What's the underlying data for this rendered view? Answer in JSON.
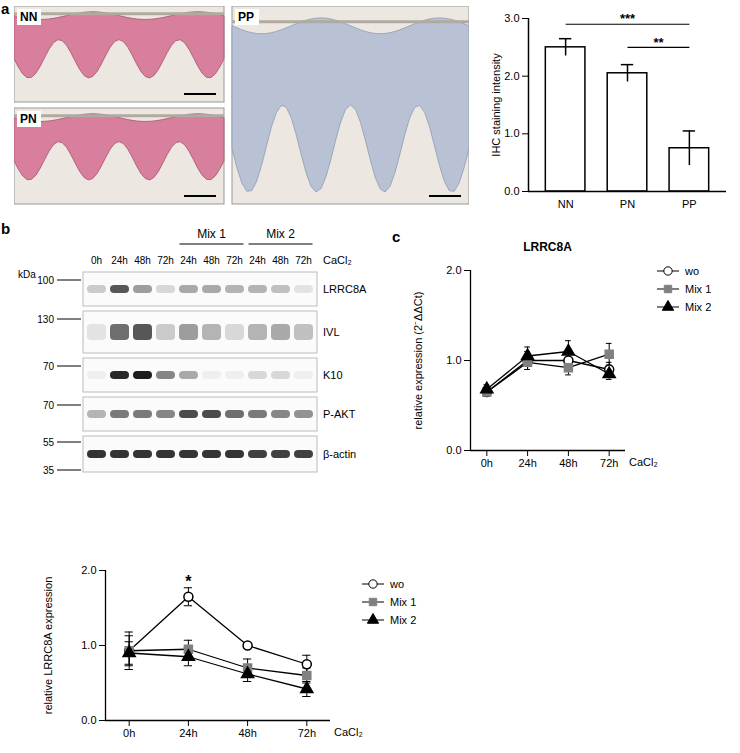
{
  "panel_letters": [
    "a",
    "b",
    "c"
  ],
  "micrographs": [
    {
      "label": "NN",
      "stained": true
    },
    {
      "label": "PN",
      "stained": true
    },
    {
      "label": "PP",
      "stained": false
    }
  ],
  "western_blot": {
    "marker_unit": "kDa",
    "treatment": "CaCl₂",
    "lanes": [
      "0h",
      "24h",
      "48h",
      "72h",
      "24h",
      "48h",
      "72h",
      "24h",
      "48h",
      "72h"
    ],
    "groups": [
      {
        "label": "Mix 1",
        "lanes": [
          4,
          5,
          6
        ]
      },
      {
        "label": "Mix 2",
        "lanes": [
          7,
          8,
          9
        ]
      }
    ],
    "rows": [
      {
        "name": "LRRC8A",
        "markers": [
          100
        ],
        "intensities": [
          0.2,
          0.7,
          0.4,
          0.15,
          0.35,
          0.35,
          0.3,
          0.3,
          0.25,
          0.1
        ]
      },
      {
        "name": "IVL",
        "markers": [
          130
        ],
        "intensities": [
          0.1,
          0.6,
          0.7,
          0.2,
          0.4,
          0.3,
          0.15,
          0.3,
          0.35,
          0.25
        ]
      },
      {
        "name": "K10",
        "markers": [
          70
        ],
        "intensities": [
          0.05,
          0.9,
          0.95,
          0.5,
          0.35,
          0.05,
          0.05,
          0.15,
          0.15,
          0.05
        ]
      },
      {
        "name": "P-AKT",
        "markers": [
          70
        ],
        "intensities": [
          0.3,
          0.55,
          0.55,
          0.5,
          0.75,
          0.75,
          0.6,
          0.55,
          0.5,
          0.45
        ]
      },
      {
        "name": "β-actin",
        "markers": [
          55,
          35
        ],
        "intensities": [
          0.85,
          0.85,
          0.85,
          0.85,
          0.85,
          0.85,
          0.85,
          0.8,
          0.8,
          0.8
        ]
      }
    ]
  },
  "chart_data": [
    {
      "type": "bar",
      "categories": [
        "NN",
        "PN",
        "PP"
      ],
      "values": [
        2.5,
        2.05,
        0.75
      ],
      "errors": [
        0.15,
        0.15,
        0.3
      ],
      "color": "#ffffff",
      "ylabel": "IHC staining intensity",
      "ylim": [
        0,
        3
      ],
      "yticks": [
        0,
        1,
        2,
        3
      ],
      "annotations": [
        {
          "text": "***",
          "from": "NN",
          "to": "PP",
          "y": 2.9
        },
        {
          "text": "**",
          "from": "PN",
          "to": "PP",
          "y": 2.5
        }
      ]
    },
    {
      "type": "line",
      "x": [
        "0h",
        "24h",
        "48h",
        "72h"
      ],
      "xlabel": "CaCl₂",
      "ylabel": "relative LRRC8A expression",
      "ylim": [
        0,
        2
      ],
      "yticks": [
        0,
        1,
        2
      ],
      "legend": "right",
      "series": [
        {
          "name": "wo",
          "color": "#ffffff",
          "marker": "circle",
          "values": [
            0.93,
            1.65,
            1.0,
            0.75
          ],
          "errors": [
            0.25,
            0.12,
            0.03,
            0.12
          ]
        },
        {
          "name": "Mix 1",
          "color": "#808080",
          "marker": "square",
          "values": [
            0.93,
            0.95,
            0.7,
            0.6
          ],
          "errors": [
            0.2,
            0.12,
            0.12,
            0.1
          ]
        },
        {
          "name": "Mix 2",
          "color": "#000000",
          "marker": "triangle",
          "values": [
            0.9,
            0.85,
            0.62,
            0.42
          ],
          "errors": [
            0.15,
            0.12,
            0.1,
            0.1
          ]
        }
      ],
      "annotations": [
        {
          "text": "*",
          "x": "24h",
          "y": 1.85
        }
      ]
    },
    {
      "type": "line",
      "title": "LRRC8A",
      "x": [
        "0h",
        "24h",
        "48h",
        "72h"
      ],
      "xlabel": "CaCl₂",
      "ylabel": "relative expression (2⁻ΔΔCt)",
      "ylim": [
        0,
        2
      ],
      "yticks": [
        0,
        1,
        2
      ],
      "legend": "right",
      "series": [
        {
          "name": "wo",
          "color": "#ffffff",
          "marker": "circle",
          "values": [
            0.65,
            1.0,
            1.0,
            0.9
          ],
          "errors": [
            0.05,
            0.1,
            0.1,
            0.08
          ]
        },
        {
          "name": "Mix 1",
          "color": "#808080",
          "marker": "square",
          "values": [
            0.65,
            0.98,
            0.92,
            1.07
          ],
          "errors": [
            0.05,
            0.08,
            0.08,
            0.12
          ]
        },
        {
          "name": "Mix 2",
          "color": "#000000",
          "marker": "triangle",
          "values": [
            0.68,
            1.05,
            1.1,
            0.85
          ],
          "errors": [
            0.05,
            0.1,
            0.12,
            0.06
          ]
        }
      ]
    }
  ]
}
